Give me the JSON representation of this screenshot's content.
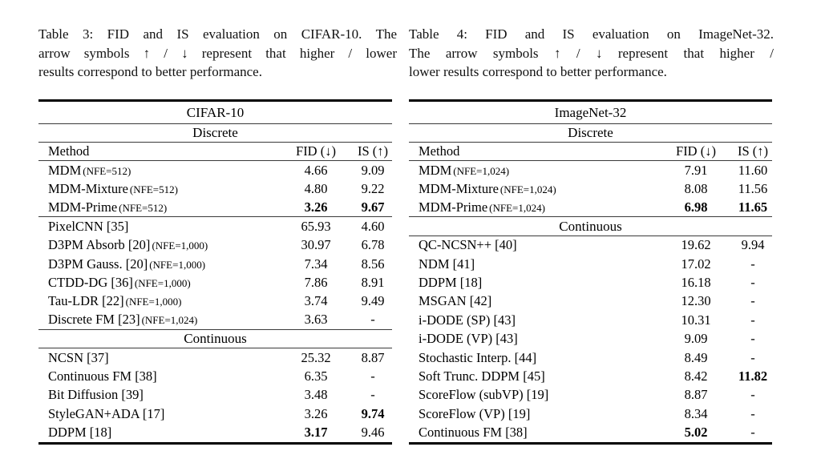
{
  "captions": [
    {
      "lines": [
        "Table 3: FID and IS evaluation on CIFAR-10. The",
        "arrow symbols ↑ / ↓ represent that higher / lower",
        "results correspond to better performance."
      ]
    },
    {
      "lines": [
        "Table 4: FID and IS evaluation on ImageNet-32.",
        "The arrow symbols ↑ / ↓ represent that higher /",
        "lower results correspond to better performance."
      ]
    }
  ],
  "tables": [
    {
      "dataset": "CIFAR-10",
      "rows": [
        {
          "kind": "title",
          "text": "CIFAR-10"
        },
        {
          "kind": "group",
          "text": "Discrete"
        },
        {
          "kind": "header",
          "method": "Method",
          "fid": "FID (↓)",
          "is": "IS (↑)"
        },
        {
          "kind": "data",
          "method": "MDM",
          "note": "(NFE=512)",
          "fid": "4.66",
          "is": "9.09"
        },
        {
          "kind": "data",
          "method": "MDM-Mixture",
          "note": "(NFE=512)",
          "fid": "4.80",
          "is": "9.22"
        },
        {
          "kind": "data",
          "method": "MDM-Prime",
          "note": "(NFE=512)",
          "fid": "3.26",
          "is": "9.67",
          "fid_bold": true,
          "is_bold": true,
          "rule_below": true
        },
        {
          "kind": "data",
          "method": "PixelCNN [35]",
          "fid": "65.93",
          "is": "4.60"
        },
        {
          "kind": "data",
          "method": "D3PM Absorb [20]",
          "note": "(NFE=1,000)",
          "fid": "30.97",
          "is": "6.78"
        },
        {
          "kind": "data",
          "method": "D3PM Gauss. [20]",
          "note": "(NFE=1,000)",
          "fid": "7.34",
          "is": "8.56"
        },
        {
          "kind": "data",
          "method": "CTDD-DG [36]",
          "note": "(NFE=1,000)",
          "fid": "7.86",
          "is": "8.91"
        },
        {
          "kind": "data",
          "method": "Tau-LDR [22]",
          "note": "(NFE=1,000)",
          "fid": "3.74",
          "is": "9.49"
        },
        {
          "kind": "data",
          "method": "Discrete FM [23]",
          "note": "(NFE=1,024)",
          "fid": "3.63",
          "is": "-",
          "rule_below": true
        },
        {
          "kind": "group",
          "text": "Continuous"
        },
        {
          "kind": "data",
          "method": "NCSN [37]",
          "fid": "25.32",
          "is": "8.87"
        },
        {
          "kind": "data",
          "method": "Continuous FM [38]",
          "fid": "6.35",
          "is": "-"
        },
        {
          "kind": "data",
          "method": "Bit Diffusion [39]",
          "fid": "3.48",
          "is": "-"
        },
        {
          "kind": "data",
          "method": "StyleGAN+ADA [17]",
          "fid": "3.26",
          "is": "9.74",
          "is_bold": true
        },
        {
          "kind": "data",
          "method": "DDPM [18]",
          "fid": "3.17",
          "is": "9.46",
          "fid_bold": true
        }
      ]
    },
    {
      "dataset": "ImageNet-32",
      "rows": [
        {
          "kind": "title",
          "text": "ImageNet-32"
        },
        {
          "kind": "group",
          "text": "Discrete"
        },
        {
          "kind": "header",
          "method": "Method",
          "fid": "FID (↓)",
          "is": "IS (↑)"
        },
        {
          "kind": "data",
          "method": "MDM",
          "note": "(NFE=1,024)",
          "fid": "7.91",
          "is": "11.60"
        },
        {
          "kind": "data",
          "method": "MDM-Mixture",
          "note": "(NFE=1,024)",
          "fid": "8.08",
          "is": "11.56"
        },
        {
          "kind": "data",
          "method": "MDM-Prime",
          "note": "(NFE=1,024)",
          "fid": "6.98",
          "is": "11.65",
          "fid_bold": true,
          "is_bold": true,
          "rule_below": true
        },
        {
          "kind": "group",
          "text": "Continuous"
        },
        {
          "kind": "data",
          "method": "QC-NCSN++ [40]",
          "fid": "19.62",
          "is": "9.94"
        },
        {
          "kind": "data",
          "method": "NDM [41]",
          "fid": "17.02",
          "is": "-"
        },
        {
          "kind": "data",
          "method": "DDPM [18]",
          "fid": "16.18",
          "is": "-"
        },
        {
          "kind": "data",
          "method": "MSGAN [42]",
          "fid": "12.30",
          "is": "-"
        },
        {
          "kind": "data",
          "method": "i-DODE (SP) [43]",
          "fid": "10.31",
          "is": "-"
        },
        {
          "kind": "data",
          "method": "i-DODE (VP) [43]",
          "fid": "9.09",
          "is": "-"
        },
        {
          "kind": "data",
          "method": "Stochastic Interp. [44]",
          "fid": "8.49",
          "is": "-"
        },
        {
          "kind": "data",
          "method": "Soft Trunc. DDPM [45]",
          "fid": "8.42",
          "is": "11.82",
          "is_bold": true
        },
        {
          "kind": "data",
          "method": "ScoreFlow (subVP) [19]",
          "fid": "8.87",
          "is": "-"
        },
        {
          "kind": "data",
          "method": "ScoreFlow (VP) [19]",
          "fid": "8.34",
          "is": "-"
        },
        {
          "kind": "data",
          "method": "Continuous FM [38]",
          "fid": "5.02",
          "is": "-",
          "fid_bold": true
        }
      ]
    }
  ]
}
